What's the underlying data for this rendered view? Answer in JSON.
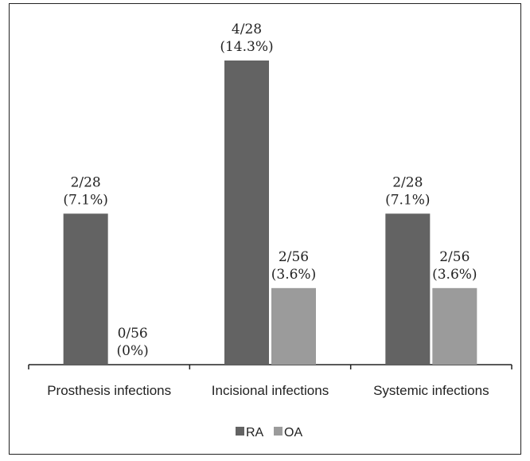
{
  "chart_data": {
    "type": "bar",
    "categories": [
      "Prosthesis infections",
      "Incisional infections",
      "Systemic infections"
    ],
    "series": [
      {
        "name": "RA",
        "color": "#636363",
        "values": [
          7.1,
          14.3,
          7.1
        ],
        "labels": [
          [
            "2/28",
            "(7.1%)"
          ],
          [
            "4/28",
            "(14.3%)"
          ],
          [
            "2/28",
            "(7.1%)"
          ]
        ]
      },
      {
        "name": "OA",
        "color": "#9b9b9b",
        "values": [
          0,
          3.6,
          3.6
        ],
        "labels": [
          [
            "0/56",
            "(0%)"
          ],
          [
            "2/56",
            "(3.6%)"
          ],
          [
            "2/56",
            "(3.6%)"
          ]
        ]
      }
    ],
    "ylim": [
      0,
      16
    ],
    "grid": false,
    "legend_position": "bottom-center"
  }
}
